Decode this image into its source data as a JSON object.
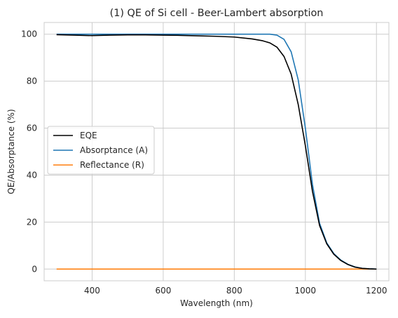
{
  "chart_data": {
    "type": "line",
    "title": "(1) QE of Si cell - Beer-Lambert absorption",
    "xlabel": "Wavelength (nm)",
    "ylabel": "QE/Absorptance (%)",
    "xlim": [
      265,
      1235
    ],
    "ylim": [
      -5,
      105
    ],
    "xticks": [
      400,
      600,
      800,
      1000,
      1200
    ],
    "yticks": [
      0,
      20,
      40,
      60,
      80,
      100
    ],
    "grid": true,
    "legend_position": "center-left",
    "series": [
      {
        "name": "EQE",
        "color": "#000000",
        "x": [
          300,
          350,
          400,
          450,
          500,
          550,
          600,
          650,
          700,
          750,
          800,
          850,
          880,
          900,
          920,
          940,
          960,
          980,
          1000,
          1020,
          1040,
          1060,
          1080,
          1100,
          1120,
          1140,
          1160,
          1180,
          1200
        ],
        "y": [
          99.8,
          99.6,
          99.4,
          99.6,
          99.7,
          99.7,
          99.6,
          99.5,
          99.3,
          99.1,
          98.8,
          98.0,
          97.2,
          96.3,
          94.5,
          90.5,
          83.0,
          70.0,
          52.5,
          33.0,
          18.5,
          10.8,
          6.3,
          3.6,
          1.9,
          0.8,
          0.3,
          0.1,
          0.0
        ]
      },
      {
        "name": "Absorptance (A)",
        "color": "#1f77b4",
        "x": [
          300,
          350,
          400,
          450,
          500,
          550,
          600,
          650,
          700,
          750,
          800,
          850,
          880,
          900,
          920,
          940,
          960,
          980,
          1000,
          1020,
          1040,
          1060,
          1080,
          1100,
          1120,
          1140,
          1160,
          1180,
          1200
        ],
        "y": [
          100,
          100,
          100,
          100,
          100,
          100,
          100,
          100,
          100,
          100,
          100,
          100,
          100,
          100,
          99.6,
          97.8,
          92.5,
          80.5,
          60.0,
          36.0,
          19.5,
          11.2,
          6.6,
          3.8,
          2.0,
          0.9,
          0.3,
          0.1,
          0.0
        ]
      },
      {
        "name": "Reflectance (R)",
        "color": "#ff7f0e",
        "x": [
          300,
          1200
        ],
        "y": [
          0,
          0
        ]
      }
    ]
  }
}
